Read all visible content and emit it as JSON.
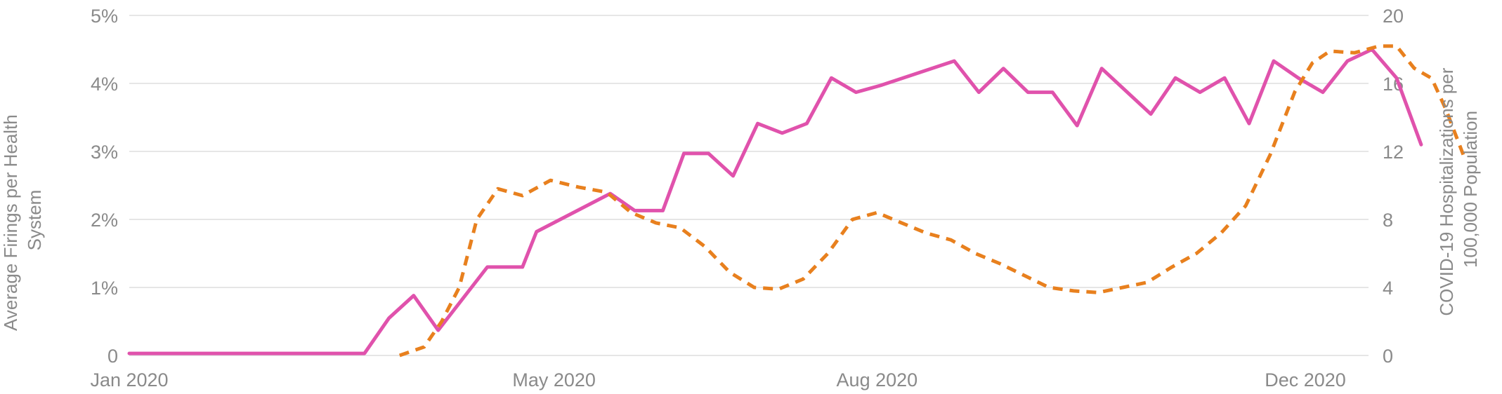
{
  "chart_data": {
    "type": "line",
    "title": "",
    "y_left": {
      "label_lines": [
        "Average Firings per Health",
        "System"
      ],
      "ticks": [
        "0",
        "1%",
        "2%",
        "3%",
        "4%",
        "5%"
      ],
      "min": 0,
      "max": 5,
      "unit": "%"
    },
    "y_right": {
      "label_lines": [
        "COVID-19 Hospitalizations per",
        "100,000 Population"
      ],
      "ticks": [
        "0",
        "4",
        "8",
        "12",
        "16",
        "20"
      ],
      "min": 0,
      "max": 20
    },
    "x_axis": {
      "ticks": [
        {
          "label": "Jan 2020",
          "date": "2020-01-01"
        },
        {
          "label": "May 2020",
          "date": "2020-05-01"
        },
        {
          "label": "Aug 2020",
          "date": "2020-08-01"
        },
        {
          "label": "Dec 2020",
          "date": "2020-12-01"
        }
      ]
    },
    "grid": true,
    "series": [
      {
        "axis": "left",
        "style": "solid",
        "color": "#e052ac",
        "points": [
          [
            "2020-01-01",
            0.03
          ],
          [
            "2020-03-08",
            0.03
          ],
          [
            "2020-03-15",
            0.55
          ],
          [
            "2020-03-22",
            0.88
          ],
          [
            "2020-03-29",
            0.37
          ],
          [
            "2020-04-12",
            1.3
          ],
          [
            "2020-04-22",
            1.3
          ],
          [
            "2020-04-26",
            1.82
          ],
          [
            "2020-05-17",
            2.38
          ],
          [
            "2020-05-24",
            2.13
          ],
          [
            "2020-06-01",
            2.13
          ],
          [
            "2020-06-07",
            2.97
          ],
          [
            "2020-06-14",
            2.97
          ],
          [
            "2020-06-21",
            2.64
          ],
          [
            "2020-06-28",
            3.41
          ],
          [
            "2020-07-05",
            3.27
          ],
          [
            "2020-07-12",
            3.41
          ],
          [
            "2020-07-19",
            4.08
          ],
          [
            "2020-07-26",
            3.87
          ],
          [
            "2020-08-02",
            3.97
          ],
          [
            "2020-08-23",
            4.33
          ],
          [
            "2020-08-30",
            3.87
          ],
          [
            "2020-09-06",
            4.22
          ],
          [
            "2020-09-13",
            3.87
          ],
          [
            "2020-09-20",
            3.87
          ],
          [
            "2020-09-27",
            3.38
          ],
          [
            "2020-10-04",
            4.22
          ],
          [
            "2020-10-18",
            3.55
          ],
          [
            "2020-10-25",
            4.08
          ],
          [
            "2020-11-01",
            3.87
          ],
          [
            "2020-11-08",
            4.08
          ],
          [
            "2020-11-15",
            3.41
          ],
          [
            "2020-11-22",
            4.33
          ],
          [
            "2020-11-29",
            4.08
          ],
          [
            "2020-12-06",
            3.87
          ],
          [
            "2020-12-13",
            4.33
          ],
          [
            "2020-12-20",
            4.5
          ],
          [
            "2020-12-27",
            4.08
          ],
          [
            "2021-01-03",
            3.1
          ]
        ]
      },
      {
        "axis": "right",
        "style": "dashed",
        "color": "#e8801e",
        "points": [
          [
            "2020-03-18",
            0
          ],
          [
            "2020-03-25",
            0.5
          ],
          [
            "2020-03-30",
            2
          ],
          [
            "2020-04-04",
            4
          ],
          [
            "2020-04-09",
            8
          ],
          [
            "2020-04-15",
            9.8
          ],
          [
            "2020-04-22",
            9.4
          ],
          [
            "2020-04-30",
            10.3
          ],
          [
            "2020-05-08",
            9.9
          ],
          [
            "2020-05-16",
            9.6
          ],
          [
            "2020-05-23",
            8.4
          ],
          [
            "2020-05-30",
            7.8
          ],
          [
            "2020-06-06",
            7.5
          ],
          [
            "2020-06-13",
            6.4
          ],
          [
            "2020-06-20",
            4.9
          ],
          [
            "2020-06-27",
            4
          ],
          [
            "2020-07-04",
            3.9
          ],
          [
            "2020-07-11",
            4.5
          ],
          [
            "2020-07-18",
            6
          ],
          [
            "2020-07-25",
            8
          ],
          [
            "2020-08-01",
            8.4
          ],
          [
            "2020-08-08",
            7.8
          ],
          [
            "2020-08-15",
            7.2
          ],
          [
            "2020-08-22",
            6.8
          ],
          [
            "2020-08-29",
            6
          ],
          [
            "2020-09-05",
            5.4
          ],
          [
            "2020-09-12",
            4.7
          ],
          [
            "2020-09-19",
            4
          ],
          [
            "2020-09-26",
            3.8
          ],
          [
            "2020-10-03",
            3.7
          ],
          [
            "2020-10-10",
            4
          ],
          [
            "2020-10-17",
            4.3
          ],
          [
            "2020-10-24",
            5.2
          ],
          [
            "2020-10-31",
            6
          ],
          [
            "2020-11-07",
            7.2
          ],
          [
            "2020-11-14",
            8.8
          ],
          [
            "2020-11-21",
            11.8
          ],
          [
            "2020-11-28",
            15.5
          ],
          [
            "2020-12-03",
            17.2
          ],
          [
            "2020-12-08",
            17.9
          ],
          [
            "2020-12-15",
            17.8
          ],
          [
            "2020-12-22",
            18.2
          ],
          [
            "2020-12-27",
            18.2
          ],
          [
            "2021-01-01",
            16.9
          ],
          [
            "2021-01-06",
            16.3
          ],
          [
            "2021-01-10",
            14.5
          ],
          [
            "2021-01-15",
            11.8
          ]
        ]
      }
    ]
  }
}
